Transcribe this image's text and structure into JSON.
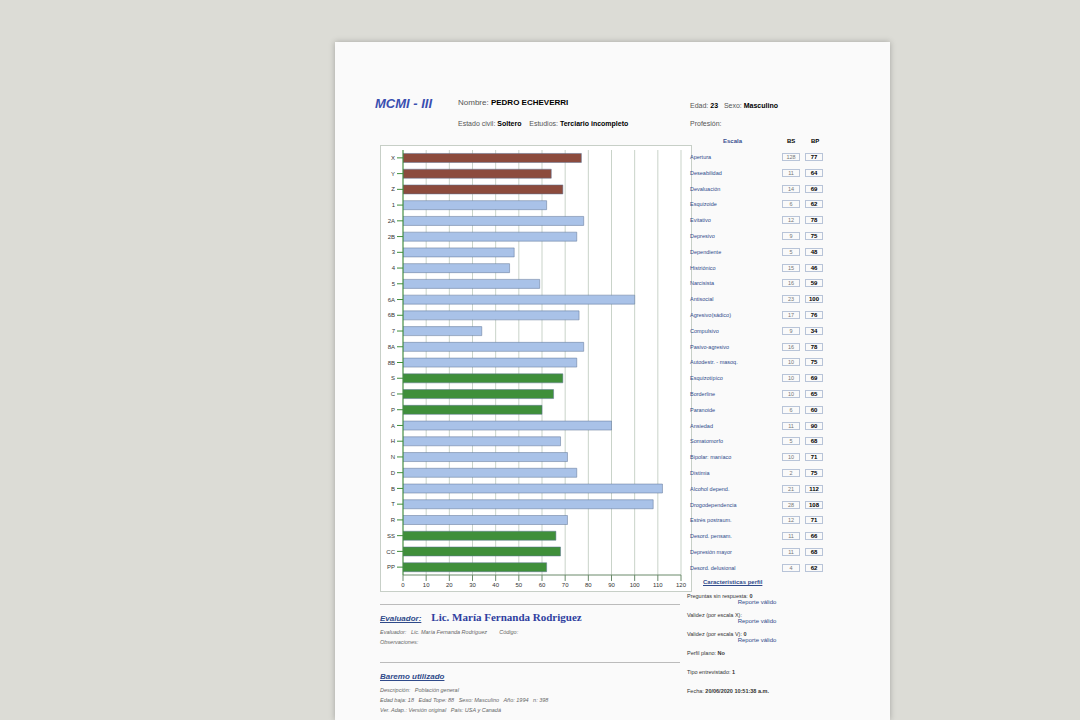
{
  "header": {
    "logo": "MCMI - III",
    "fields": [
      {
        "label": "Nombre:",
        "value": "PEDRO ECHEVERRI"
      },
      {
        "label": "Edad:",
        "value": "23"
      },
      {
        "label": "Sexo:",
        "value": "Masculino"
      },
      {
        "label": "Estado civil:",
        "value": "Soltero"
      },
      {
        "label": "Estudios:",
        "value": "Terciario incompleto"
      },
      {
        "label": "Profesión:"
      }
    ]
  },
  "chart_data": {
    "type": "bar",
    "orientation": "horizontal",
    "categories": [
      "X",
      "Y",
      "Z",
      "1",
      "2A",
      "2B",
      "3",
      "4",
      "5",
      "6A",
      "6B",
      "7",
      "8A",
      "8B",
      "S",
      "C",
      "P",
      "A",
      "H",
      "N",
      "D",
      "B",
      "T",
      "R",
      "SS",
      "CC",
      "PP"
    ],
    "values": [
      77,
      64,
      69,
      62,
      78,
      75,
      48,
      46,
      59,
      100,
      76,
      34,
      78,
      75,
      69,
      65,
      60,
      90,
      68,
      71,
      75,
      112,
      108,
      71,
      66,
      68,
      62
    ],
    "colors": [
      "#8c4b3d",
      "#8c4b3d",
      "#8c4b3d",
      "#a9c2e8",
      "#a9c2e8",
      "#a9c2e8",
      "#a9c2e8",
      "#a9c2e8",
      "#a9c2e8",
      "#a9c2e8",
      "#a9c2e8",
      "#a9c2e8",
      "#a9c2e8",
      "#a9c2e8",
      "#3f8f3a",
      "#3f8f3a",
      "#3f8f3a",
      "#a9c2e8",
      "#a9c2e8",
      "#a9c2e8",
      "#a9c2e8",
      "#a9c2e8",
      "#a9c2e8",
      "#a9c2e8",
      "#3f8f3a",
      "#3f8f3a",
      "#3f8f3a"
    ],
    "xlim": [
      0,
      120
    ],
    "xticks": [
      0,
      10,
      20,
      30,
      40,
      50,
      60,
      70,
      80,
      90,
      100,
      110,
      120
    ],
    "grid": true
  },
  "table": {
    "header": [
      "Escala",
      "BS",
      "BP"
    ],
    "rows": [
      [
        "Apertura",
        128,
        77
      ],
      [
        "Deseabilidad",
        11,
        64
      ],
      [
        "Devaluación",
        14,
        69
      ],
      [
        "Esquizoide",
        6,
        62
      ],
      [
        "Evitativo",
        12,
        78
      ],
      [
        "Depresivo",
        9,
        75
      ],
      [
        "Dependiente",
        5,
        48
      ],
      [
        "Histriónico",
        15,
        46
      ],
      [
        "Narcisista",
        16,
        59
      ],
      [
        "Antisocial",
        23,
        100
      ],
      [
        "Agresivo(sádico)",
        17,
        76
      ],
      [
        "Compulsivo",
        9,
        34
      ],
      [
        "Pasivo-agresivo",
        16,
        78
      ],
      [
        "Autodestr. - masoq.",
        10,
        75
      ],
      [
        "Esquizotípico",
        10,
        69
      ],
      [
        "Borderline",
        10,
        65
      ],
      [
        "Paranoide",
        6,
        60
      ],
      [
        "Ansiedad",
        11,
        90
      ],
      [
        "Somatomorfo",
        5,
        68
      ],
      [
        "Bipolar: maníaco",
        10,
        71
      ],
      [
        "Distimia",
        2,
        75
      ],
      [
        "Alcohol depend.",
        21,
        112
      ],
      [
        "Drogodependencia",
        28,
        108
      ],
      [
        "Estrés postraum.",
        12,
        71
      ],
      [
        "Desord. pensam.",
        11,
        66
      ],
      [
        "Depresión mayor",
        11,
        68
      ],
      [
        "Desord. delusional",
        4,
        62
      ]
    ]
  },
  "perfil": {
    "title": "Características perfil",
    "items": [
      {
        "label": "Preguntas sin respuesta:",
        "value": 0,
        "status": "Reporte válido"
      },
      {
        "label": "Validez (por escala X):",
        "status": "Reporte válido"
      },
      {
        "label": "Validez (por escala V):",
        "value": 0,
        "status": "Reporte válido"
      },
      {
        "label": "Perfil plano:",
        "value": "No"
      },
      {
        "label": "Tipo entrevistado:",
        "value": 1
      },
      {
        "label": "Fecha:",
        "value": "20/06/2020 10:51:38 a.m."
      }
    ]
  },
  "evaluador": {
    "title": "Evaluador:",
    "name": "Lic. María Fernanda Rodriguez",
    "lines": [
      "Evaluador:   Lic. María Fernanda Rodríguez        Código:",
      "Observaciones:"
    ]
  },
  "baremo": {
    "title": "Baremo utilizado",
    "lines": [
      "Descripción:   Población general",
      "Edad baja: 18   Edad Tope: 88   Sexo: Masculino   Año: 1994   n: 398",
      "Ver. Adap.: Versión original   País: USA y Canadá"
    ]
  }
}
